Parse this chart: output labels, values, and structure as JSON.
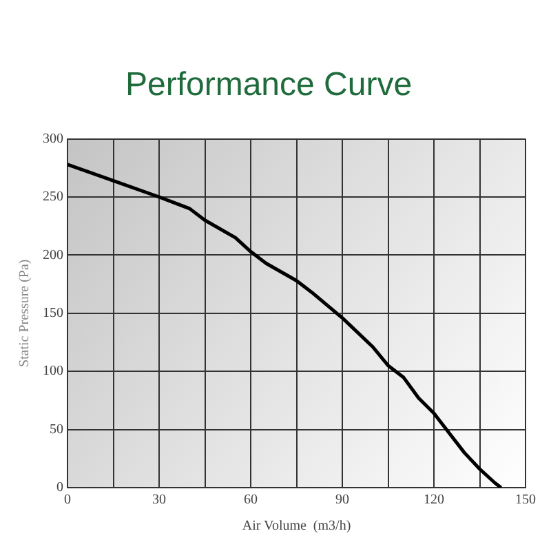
{
  "chart_data": {
    "type": "line",
    "title": "Performance Curve",
    "xlabel": "Air Volume  (m3/h)",
    "ylabel": "Static Pressure (Pa)",
    "series": [
      {
        "color": "#000000",
        "x": [
          0,
          15,
          30,
          40,
          45,
          55,
          60,
          65,
          75,
          80,
          90,
          100,
          105,
          110,
          115,
          120,
          125,
          130,
          135,
          140,
          142
        ],
        "values": [
          278,
          264,
          250,
          240,
          230,
          215,
          203,
          193,
          178,
          168,
          146,
          121,
          105,
          95,
          77,
          64,
          47,
          30,
          16,
          4,
          0
        ]
      }
    ],
    "xlim": [
      0,
      150
    ],
    "xticks": [
      0,
      {
        "value": 15,
        "label": null
      },
      30,
      {
        "value": 45,
        "label": null
      },
      60,
      {
        "value": 75,
        "label": null
      },
      90,
      {
        "value": 105,
        "label": null
      },
      120,
      {
        "value": 135,
        "label": null
      },
      150
    ],
    "ylim": [
      0,
      300
    ],
    "yticks": [
      0,
      50,
      100,
      150,
      200,
      250,
      300
    ],
    "grid": true,
    "marker": "none",
    "line_style": "solid"
  }
}
